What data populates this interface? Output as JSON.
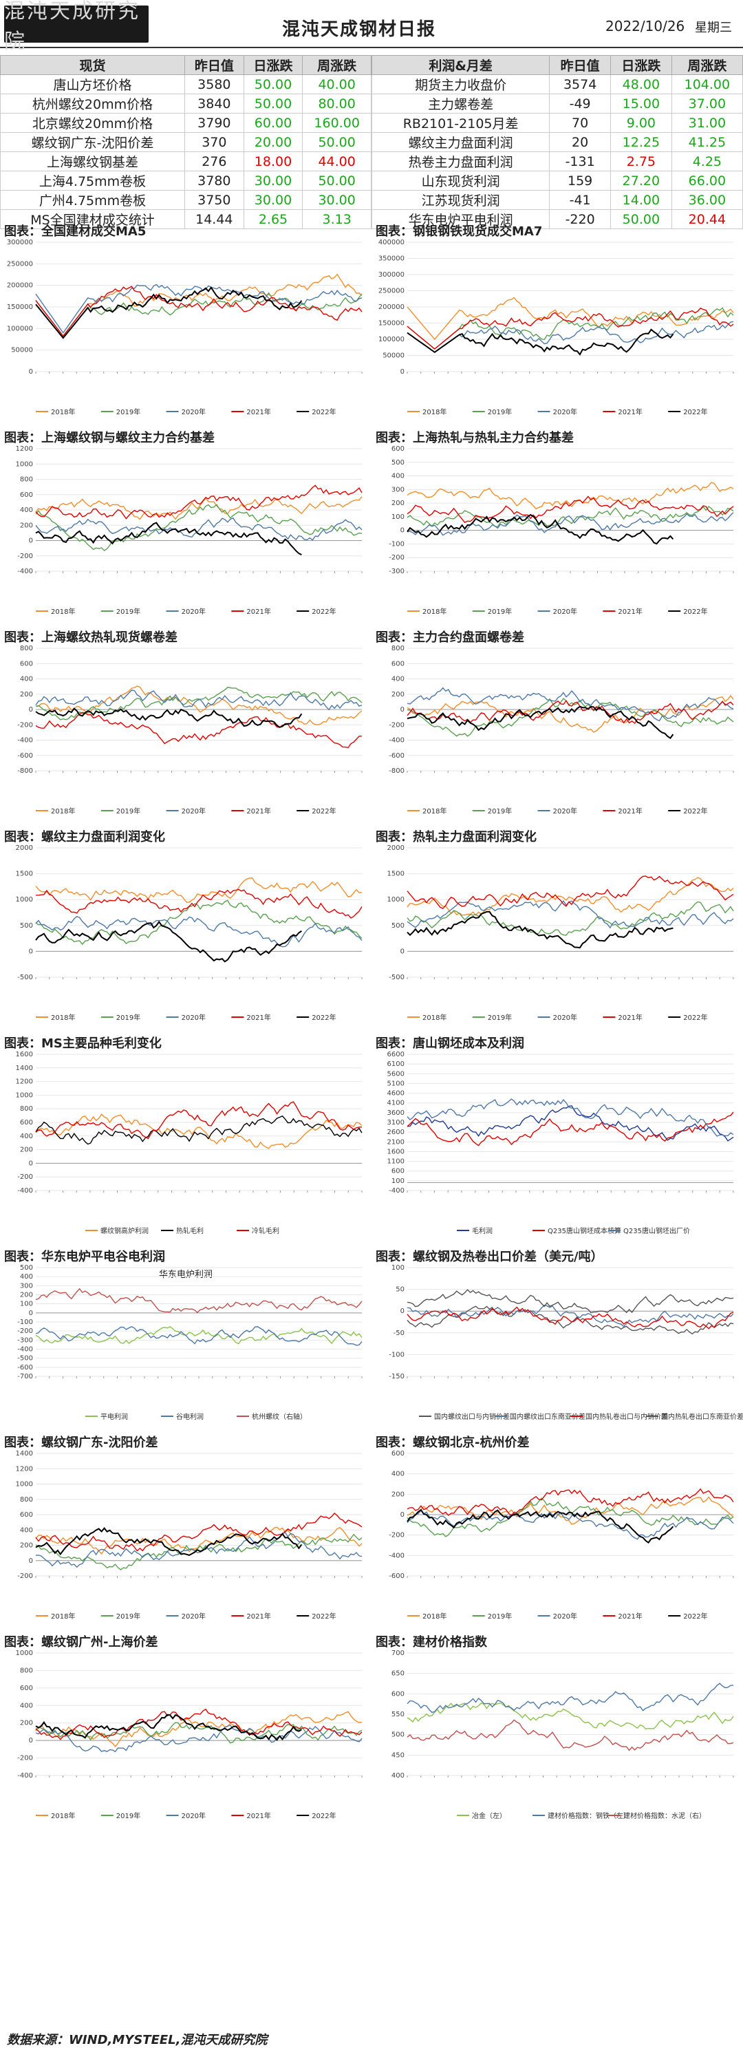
{
  "header": {
    "logo_text": "混沌天成研究院",
    "title": "混沌天成钢材日报",
    "date": "2022/10/26",
    "weekday": "星期三"
  },
  "table_left": {
    "headers": [
      "现货",
      "昨日值",
      "日涨跌",
      "周涨跌"
    ],
    "rows": [
      [
        "唐山方坯价格",
        "3580",
        "50.00",
        "40.00"
      ],
      [
        "杭州螺纹20mm价格",
        "3840",
        "50.00",
        "80.00"
      ],
      [
        "北京螺纹20mm价格",
        "3790",
        "60.00",
        "160.00"
      ],
      [
        "螺纹钢广东-沈阳价差",
        "370",
        "20.00",
        "50.00"
      ],
      [
        "上海螺纹钢基差",
        "276",
        "18.00",
        "44.00"
      ],
      [
        "上海4.75mm卷板",
        "3780",
        "30.00",
        "50.00"
      ],
      [
        "广州4.75mm卷板",
        "3750",
        "30.00",
        "30.00"
      ],
      [
        "MS全国建材成交统计",
        "14.44",
        "2.65",
        "3.13"
      ]
    ],
    "colors": [
      [
        "g",
        "g"
      ],
      [
        "g",
        "g"
      ],
      [
        "g",
        "g"
      ],
      [
        "g",
        "g"
      ],
      [
        "r",
        "r"
      ],
      [
        "g",
        "g"
      ],
      [
        "g",
        "g"
      ],
      [
        "g",
        "g"
      ]
    ]
  },
  "table_right": {
    "headers": [
      "利润&月差",
      "昨日值",
      "日涨跌",
      "周涨跌"
    ],
    "rows": [
      [
        "期货主力收盘价",
        "3574",
        "48.00",
        "104.00"
      ],
      [
        "主力螺卷差",
        "-49",
        "15.00",
        "37.00"
      ],
      [
        "RB2101-2105月差",
        "70",
        "9.00",
        "31.00"
      ],
      [
        "螺纹主力盘面利润",
        "20",
        "12.25",
        "41.25"
      ],
      [
        "热卷主力盘面利润",
        "-131",
        "2.75",
        "4.25"
      ],
      [
        "山东现货利润",
        "159",
        "27.20",
        "66.00"
      ],
      [
        "江苏现货利润",
        "-41",
        "14.00",
        "36.00"
      ],
      [
        "华东电炉平电利润",
        "-220",
        "50.00",
        "20.44"
      ]
    ],
    "colors": [
      [
        "g",
        "g"
      ],
      [
        "g",
        "g"
      ],
      [
        "g",
        "g"
      ],
      [
        "g",
        "g"
      ],
      [
        "r",
        "g"
      ],
      [
        "g",
        "g"
      ],
      [
        "g",
        "g"
      ],
      [
        "g",
        "r"
      ]
    ]
  },
  "footer": "数据来源：WIND,MYSTEEL,混沌天成研究院",
  "colors": {
    "y2018": "#f28e2b",
    "y2019": "#59a14f",
    "y2020": "#4e79a7",
    "y2021": "#e00000",
    "y2022": "#000000"
  },
  "chart_data": [
    {
      "id": "c1",
      "title": "图表：全国建材成交MA5",
      "type": "line",
      "ylim": [
        0,
        300000
      ],
      "yticks": [
        "0",
        "50000",
        "100000",
        "150000",
        "200000",
        "250000",
        "300000"
      ],
      "legend": [
        "2018年",
        "2019年",
        "2020年",
        "2021年",
        "2022年"
      ],
      "seed": 1,
      "base": [
        0.55,
        0.55,
        0.6,
        0.55,
        0.52
      ],
      "dip": true,
      "end2022": 0.45
    },
    {
      "id": "c2",
      "title": "图表：钢银钢铁现货成交MA7",
      "type": "line",
      "ylim": [
        0,
        400000
      ],
      "yticks": [
        "0",
        "50000",
        "100000",
        "150000",
        "200000",
        "250000",
        "300000",
        "350000",
        "400000"
      ],
      "legend": [
        "2018年",
        "2019年",
        "2020年",
        "2021年",
        "2022年"
      ],
      "seed": 2,
      "base": [
        0.5,
        0.35,
        0.3,
        0.35,
        0.3
      ],
      "dip": true,
      "end2022": 0.85
    },
    {
      "id": "c3",
      "title": "图表：上海螺纹钢与螺纹主力合约基差",
      "type": "line",
      "ylim": [
        -400,
        1200
      ],
      "yticks": [
        "-400",
        "-200",
        "0",
        "200",
        "400",
        "600",
        "800",
        "1000",
        "1200"
      ],
      "legend": [
        "2018年",
        "2019年",
        "2020年",
        "2021年",
        "2022年"
      ],
      "seed": 3,
      "base": [
        0.5,
        0.45,
        0.35,
        0.5,
        0.3
      ],
      "dip": false,
      "end2022": 0.85
    },
    {
      "id": "c4",
      "title": "图表：上海热轧与热轧主力合约基差",
      "type": "line",
      "ylim": [
        -300,
        600
      ],
      "yticks": [
        "-300",
        "-200",
        "-100",
        "0",
        "100",
        "200",
        "300",
        "400",
        "500",
        "600"
      ],
      "legend": [
        "2018年",
        "2019年",
        "2020年",
        "2021年",
        "2022年"
      ],
      "seed": 4,
      "base": [
        0.65,
        0.45,
        0.35,
        0.5,
        0.3
      ],
      "dip": false,
      "end2022": 0.85
    },
    {
      "id": "c5",
      "title": "图表：上海螺纹热轧现货螺卷差",
      "type": "line",
      "ylim": [
        -800,
        800
      ],
      "yticks": [
        "-800",
        "-600",
        "-400",
        "-200",
        "0",
        "200",
        "400",
        "600",
        "800"
      ],
      "legend": [
        "2018年",
        "2019年",
        "2020年",
        "2021年",
        "2022年"
      ],
      "seed": 5,
      "base": [
        0.5,
        0.5,
        0.55,
        0.35,
        0.45
      ],
      "dip": false,
      "end2022": 0.85
    },
    {
      "id": "c6",
      "title": "图表：主力合约盘面螺卷差",
      "type": "line",
      "ylim": [
        -800,
        800
      ],
      "yticks": [
        "-800",
        "-600",
        "-400",
        "-200",
        "0",
        "200",
        "400",
        "600",
        "800"
      ],
      "legend": [
        "2018年",
        "2019年",
        "2020年",
        "2021年",
        "2022年"
      ],
      "seed": 6,
      "base": [
        0.5,
        0.5,
        0.55,
        0.45,
        0.45
      ],
      "dip": false,
      "end2022": 0.85
    },
    {
      "id": "c7",
      "title": "图表：螺纹主力盘面利润变化",
      "type": "line",
      "ylim": [
        -500,
        2000
      ],
      "yticks": [
        "-500",
        "0",
        "500",
        "1000",
        "1500",
        "2000"
      ],
      "legend": [
        "2018年",
        "2019年",
        "2020年",
        "2021年",
        "2022年"
      ],
      "seed": 7,
      "base": [
        0.7,
        0.45,
        0.4,
        0.65,
        0.3
      ],
      "dip": false,
      "end2022": 0.6
    },
    {
      "id": "c8",
      "title": "图表：热轧主力盘面利润变化",
      "type": "line",
      "ylim": [
        -500,
        2000
      ],
      "yticks": [
        "-500",
        "0",
        "500",
        "1000",
        "1500",
        "2000"
      ],
      "legend": [
        "2018年",
        "2019年",
        "2020年",
        "2021年",
        "2022年"
      ],
      "seed": 8,
      "base": [
        0.55,
        0.45,
        0.4,
        0.7,
        0.35
      ],
      "dip": false,
      "end2022": 0.6
    },
    {
      "id": "c9",
      "title": "图表：MS主要品种毛利变化",
      "type": "line",
      "ylim": [
        -400,
        1600
      ],
      "yticks": [
        "-400",
        "-200",
        "0",
        "200",
        "400",
        "600",
        "800",
        "1000",
        "1200",
        "1400",
        "1600"
      ],
      "legend": [
        "螺纹钢高炉利润",
        "热轧毛利",
        "冷轧毛利"
      ],
      "seed": 9,
      "base": [
        0.45,
        0.45,
        0.45
      ],
      "dip": false,
      "end2022": 0.1
    },
    {
      "id": "c10",
      "title": "图表：唐山钢坯成本及利润",
      "type": "line",
      "ylim": [
        -400,
        6500
      ],
      "yticks": [
        "-400",
        "100",
        "600",
        "1100",
        "1600",
        "2100",
        "2600",
        "3100",
        "3600",
        "4100",
        "4600",
        "5100",
        "5600",
        "6100",
        "6600"
      ],
      "legend": [
        "毛利润",
        "Q235唐山钢坯成本核算",
        "Q235唐山钢坯出厂价"
      ],
      "seed": 10,
      "base": [
        0.5,
        0.45,
        0.55
      ],
      "dip": false,
      "end2022": 0.5
    },
    {
      "id": "c11",
      "title": "图表：华东电炉平电谷电利润",
      "type": "line",
      "ylim": [
        -700,
        500
      ],
      "yticks": [
        "-700",
        "-600",
        "-500",
        "-400",
        "-300",
        "-200",
        "-100",
        "0",
        "100",
        "200",
        "300",
        "400",
        "500"
      ],
      "legend": [
        "平电利润",
        "谷电利润",
        "杭州螺纹（右轴）"
      ],
      "inner_title": "华东电炉利润",
      "seed": 11,
      "base": [
        0.35,
        0.4,
        0.7
      ],
      "dip": false,
      "end2022": 0.4
    },
    {
      "id": "c12",
      "title": "图表：螺纹钢及热卷出口价差（美元/吨）",
      "type": "line",
      "ylim": [
        -150,
        100
      ],
      "yticks": [
        "-150",
        "-100",
        "-50",
        "0",
        "50",
        "100"
      ],
      "legend": [
        "国内螺纹出口与内销价差",
        "国内螺纹出口东南亚价差",
        "国内热轧卷出口与内销价差",
        "国内热轧卷出口东南亚价差"
      ],
      "seed": 12,
      "base": [
        0.5,
        0.6,
        0.55,
        0.65
      ],
      "dip": false,
      "end2022": 0.5
    },
    {
      "id": "c13",
      "title": "图表：螺纹钢广东-沈阳价差",
      "type": "line",
      "ylim": [
        -200,
        1400
      ],
      "yticks": [
        "-200",
        "0",
        "200",
        "400",
        "600",
        "800",
        "1000",
        "1200",
        "1400"
      ],
      "legend": [
        "2018年",
        "2019年",
        "2020年",
        "2021年",
        "2022年"
      ],
      "seed": 13,
      "base": [
        0.3,
        0.25,
        0.2,
        0.3,
        0.25
      ],
      "dip": false,
      "end2022": 0.3
    },
    {
      "id": "c14",
      "title": "图表：螺纹钢北京-杭州价差",
      "type": "line",
      "ylim": [
        -600,
        600
      ],
      "yticks": [
        "-600",
        "-400",
        "-200",
        "0",
        "200",
        "400",
        "600"
      ],
      "legend": [
        "2018年",
        "2019年",
        "2020年",
        "2021年",
        "2022年"
      ],
      "seed": 14,
      "base": [
        0.5,
        0.5,
        0.45,
        0.55,
        0.45
      ],
      "dip": false,
      "end2022": 0.5
    },
    {
      "id": "c15",
      "title": "图表：螺纹钢广州-上海价差",
      "type": "line",
      "ylim": [
        -400,
        1000
      ],
      "yticks": [
        "-400",
        "-200",
        "0",
        "200",
        "400",
        "600",
        "800",
        "1000"
      ],
      "legend": [
        "2018年",
        "2019年",
        "2020年",
        "2021年",
        "2022年"
      ],
      "seed": 15,
      "base": [
        0.4,
        0.35,
        0.35,
        0.4,
        0.4
      ],
      "dip": false,
      "end2022": 0.4
    },
    {
      "id": "c16",
      "title": "图表：建材价格指数",
      "type": "line",
      "ylim": [
        400,
        700
      ],
      "yticks": [
        "400",
        "450",
        "500",
        "550",
        "600",
        "650",
        "700"
      ],
      "legend": [
        "冶金（左）",
        "建材价格指数：钢铁（左）",
        "建材价格指数：水泥（右）"
      ],
      "seed": 16,
      "base": [
        0.5,
        0.6,
        0.3
      ],
      "dip": false,
      "end2022": 0.3
    }
  ]
}
